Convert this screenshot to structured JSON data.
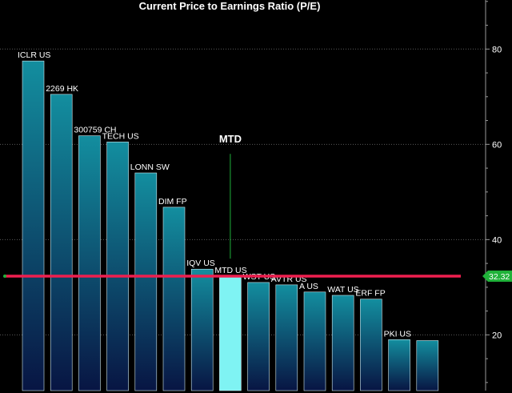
{
  "chart_data": {
    "type": "bar",
    "title": "Current Price to Earnings Ratio (P/E)",
    "categories": [
      "ICLR US",
      "2269 HK",
      "300759 CH",
      "TECH US",
      "LONN SW",
      "DIM FP",
      "IQV US",
      "MTD US",
      "WST US",
      "AVTR US",
      "A US",
      "WAT US",
      "ERF FP",
      "PKI US",
      ""
    ],
    "values": [
      77.5,
      70.5,
      61.8,
      60.5,
      54.0,
      46.8,
      33.8,
      32.3,
      31.0,
      30.5,
      29.0,
      28.3,
      27.5,
      19.0,
      18.8
    ],
    "highlight_index": 7,
    "reference_line": {
      "value": 32.32,
      "label": "32.32"
    },
    "annotation": {
      "label": "MTD",
      "category_index": 7,
      "line_top": 58,
      "line_bottom": 36
    },
    "y_ticks": [
      20,
      40,
      60,
      80
    ],
    "y_tick_labels": [
      "20",
      "40",
      "60",
      "80"
    ],
    "ylim": [
      8.3,
      90.3
    ],
    "grid": true,
    "colors": {
      "bar_top": "#138e9f",
      "bar_bottom": "#081543",
      "highlight": "#7ff3f3",
      "reference_line": "#ee1f4f",
      "reference_label_bg": "#20b23a",
      "annotation_line": "#20b23a",
      "grid": "#5a5a5a",
      "axis": "#9a9a9a",
      "text": "#ffffff"
    }
  }
}
